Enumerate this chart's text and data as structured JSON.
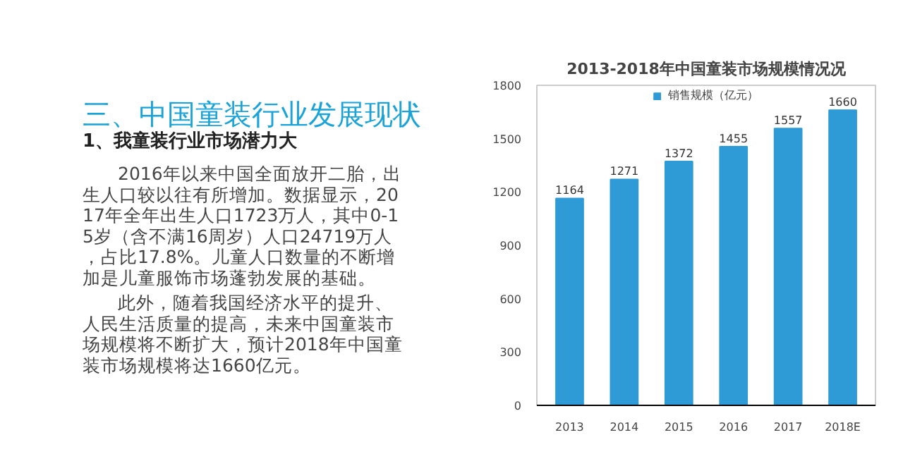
{
  "chart_data": {
    "type": "bar",
    "title": "2013-2018年中国童装市场规模情况况",
    "categories": [
      "2013",
      "2014",
      "2015",
      "2016",
      "2017",
      "2018E"
    ],
    "series": [
      {
        "name": "销售规模（亿元）",
        "color": "#2e9ad6",
        "values": [
          1164,
          1271,
          1372,
          1455,
          1557,
          1660
        ]
      }
    ],
    "ylim": [
      0,
      1800
    ],
    "yticks": [
      0,
      300,
      600,
      900,
      1200,
      1500,
      1800
    ],
    "data_labels": true,
    "grid": false,
    "legend": "top",
    "annotations": [
      "三、中国童装行业发展现状",
      "1、我童装行业市场潜力大",
      "2016年以来中国全面放开二胎，出生人口较以往有所增加。数据显示，2017年全年出生人口1723万人，其中0-15岁（含不满16周岁）人口24719万人，占比17.8%。儿童人口数量的不断增加是儿童服饰市场蓬勃发展的基础。",
      "此外，随着我国经济水平的提升、人民生活质量的提高，未来中国童装市场规模将不断扩大，预计2018年中国童装市场规模将达1660亿元。"
    ]
  }
}
